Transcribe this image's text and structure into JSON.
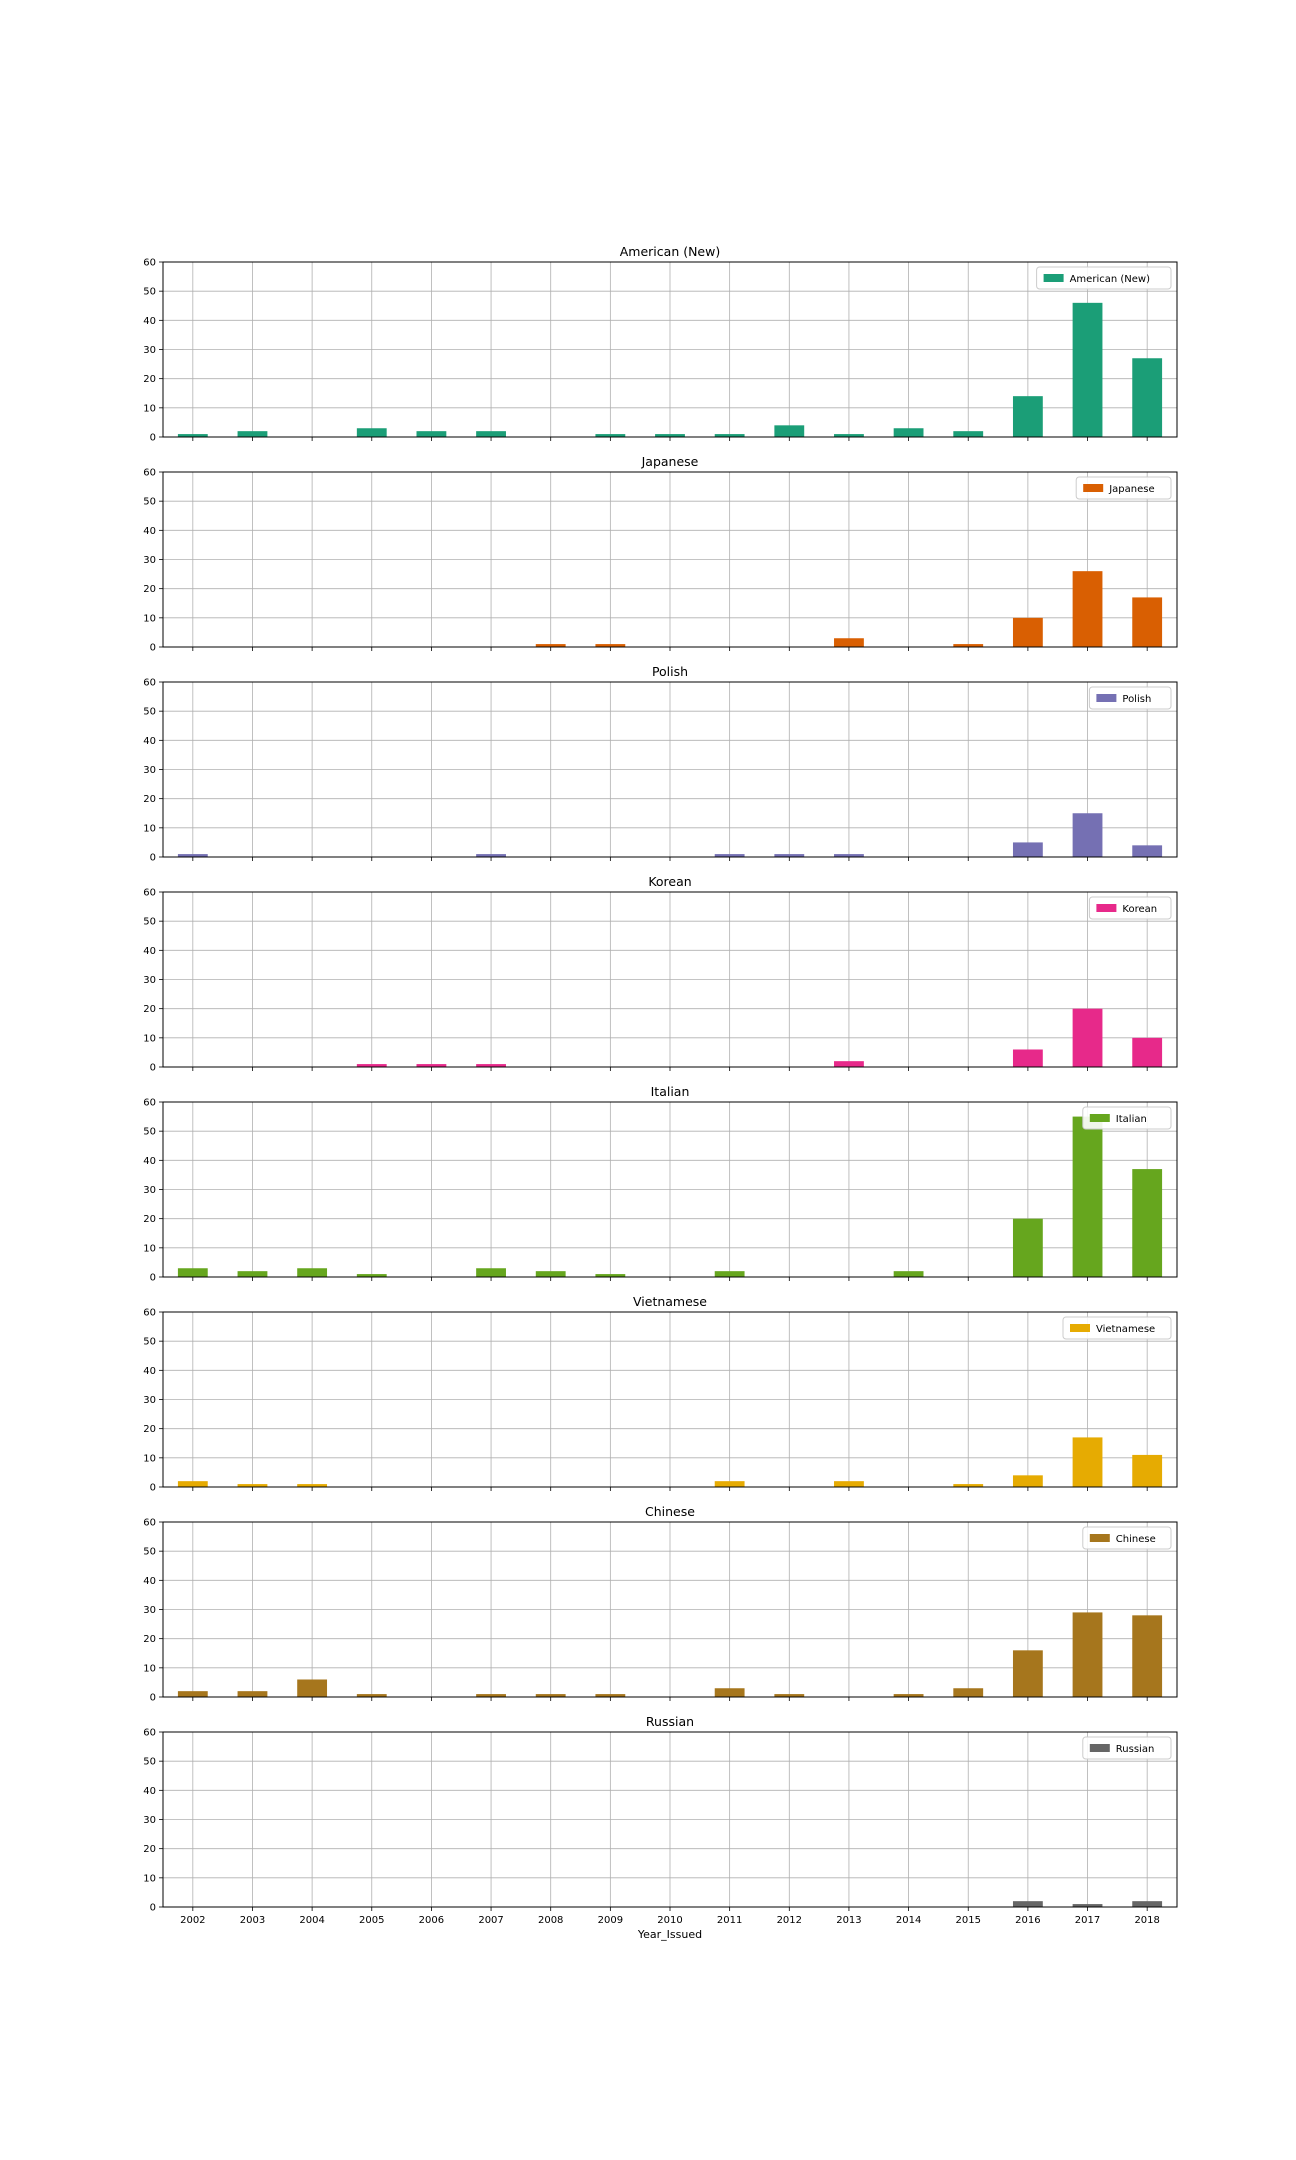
{
  "figure": {
    "xlabel": "Year_Issued",
    "years": [
      "2002",
      "2003",
      "2004",
      "2005",
      "2006",
      "2007",
      "2008",
      "2009",
      "2010",
      "2011",
      "2012",
      "2013",
      "2014",
      "2015",
      "2016",
      "2017",
      "2018"
    ],
    "ylim": [
      0,
      60
    ],
    "yticks": [
      0,
      10,
      20,
      30,
      40,
      50,
      60
    ]
  },
  "chart_data": [
    {
      "type": "bar",
      "title": "American (New)",
      "legend": "American (New)",
      "color": "#1b9e77",
      "categories": [
        "2002",
        "2003",
        "2004",
        "2005",
        "2006",
        "2007",
        "2008",
        "2009",
        "2010",
        "2011",
        "2012",
        "2013",
        "2014",
        "2015",
        "2016",
        "2017",
        "2018"
      ],
      "values": [
        1,
        2,
        0,
        3,
        2,
        2,
        0,
        1,
        1,
        1,
        4,
        1,
        3,
        2,
        14,
        46,
        27
      ],
      "ylim": [
        0,
        60
      ]
    },
    {
      "type": "bar",
      "title": "Japanese",
      "legend": "Japanese",
      "color": "#d95f02",
      "categories": [
        "2002",
        "2003",
        "2004",
        "2005",
        "2006",
        "2007",
        "2008",
        "2009",
        "2010",
        "2011",
        "2012",
        "2013",
        "2014",
        "2015",
        "2016",
        "2017",
        "2018"
      ],
      "values": [
        0,
        0,
        0,
        0,
        0,
        0,
        1,
        1,
        0,
        0,
        0,
        3,
        0,
        1,
        10,
        26,
        17
      ],
      "ylim": [
        0,
        60
      ]
    },
    {
      "type": "bar",
      "title": "Polish",
      "legend": "Polish",
      "color": "#7570b3",
      "categories": [
        "2002",
        "2003",
        "2004",
        "2005",
        "2006",
        "2007",
        "2008",
        "2009",
        "2010",
        "2011",
        "2012",
        "2013",
        "2014",
        "2015",
        "2016",
        "2017",
        "2018"
      ],
      "values": [
        1,
        0,
        0,
        0,
        0,
        1,
        0,
        0,
        0,
        1,
        1,
        1,
        0,
        0,
        5,
        15,
        4
      ],
      "ylim": [
        0,
        60
      ]
    },
    {
      "type": "bar",
      "title": "Korean",
      "legend": "Korean",
      "color": "#e7298a",
      "categories": [
        "2002",
        "2003",
        "2004",
        "2005",
        "2006",
        "2007",
        "2008",
        "2009",
        "2010",
        "2011",
        "2012",
        "2013",
        "2014",
        "2015",
        "2016",
        "2017",
        "2018"
      ],
      "values": [
        0,
        0,
        0,
        1,
        1,
        1,
        0,
        0,
        0,
        0,
        0,
        2,
        0,
        0,
        6,
        20,
        10
      ],
      "ylim": [
        0,
        60
      ]
    },
    {
      "type": "bar",
      "title": "Italian",
      "legend": "Italian",
      "color": "#66a61e",
      "categories": [
        "2002",
        "2003",
        "2004",
        "2005",
        "2006",
        "2007",
        "2008",
        "2009",
        "2010",
        "2011",
        "2012",
        "2013",
        "2014",
        "2015",
        "2016",
        "2017",
        "2018"
      ],
      "values": [
        3,
        2,
        3,
        1,
        0,
        3,
        2,
        1,
        0,
        2,
        0,
        0,
        2,
        0,
        20,
        55,
        37
      ],
      "ylim": [
        0,
        60
      ]
    },
    {
      "type": "bar",
      "title": "Vietnamese",
      "legend": "Vietnamese",
      "color": "#e6ab02",
      "categories": [
        "2002",
        "2003",
        "2004",
        "2005",
        "2006",
        "2007",
        "2008",
        "2009",
        "2010",
        "2011",
        "2012",
        "2013",
        "2014",
        "2015",
        "2016",
        "2017",
        "2018"
      ],
      "values": [
        2,
        1,
        1,
        0,
        0,
        0,
        0,
        0,
        0,
        2,
        0,
        2,
        0,
        1,
        4,
        17,
        11
      ],
      "ylim": [
        0,
        60
      ]
    },
    {
      "type": "bar",
      "title": "Chinese",
      "legend": "Chinese",
      "color": "#a6761d",
      "categories": [
        "2002",
        "2003",
        "2004",
        "2005",
        "2006",
        "2007",
        "2008",
        "2009",
        "2010",
        "2011",
        "2012",
        "2013",
        "2014",
        "2015",
        "2016",
        "2017",
        "2018"
      ],
      "values": [
        2,
        2,
        6,
        1,
        0,
        1,
        1,
        1,
        0,
        3,
        1,
        0,
        1,
        3,
        16,
        29,
        28
      ],
      "ylim": [
        0,
        60
      ]
    },
    {
      "type": "bar",
      "title": "Russian",
      "legend": "Russian",
      "color": "#666666",
      "categories": [
        "2002",
        "2003",
        "2004",
        "2005",
        "2006",
        "2007",
        "2008",
        "2009",
        "2010",
        "2011",
        "2012",
        "2013",
        "2014",
        "2015",
        "2016",
        "2017",
        "2018"
      ],
      "values": [
        0,
        0,
        0,
        0,
        0,
        0,
        0,
        0,
        0,
        0,
        0,
        0,
        0,
        0,
        2,
        1,
        2
      ],
      "ylim": [
        0,
        60
      ]
    }
  ]
}
